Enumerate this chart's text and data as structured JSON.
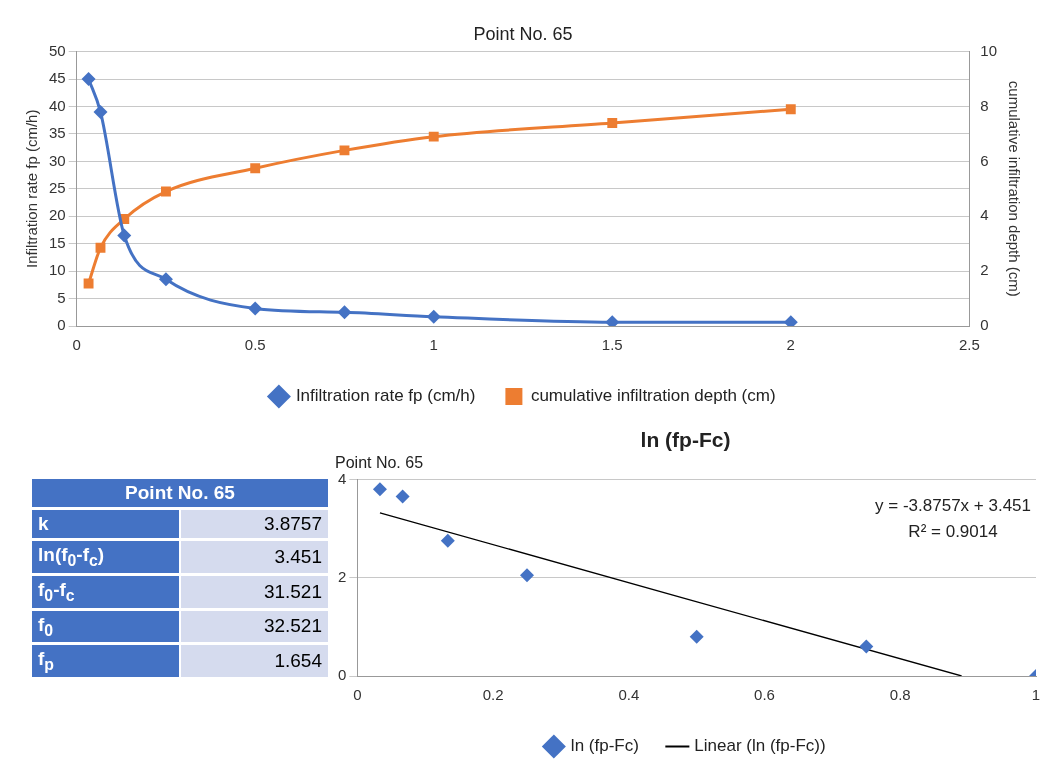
{
  "chart_data": [
    {
      "type": "line",
      "title": "Point No. 65",
      "ylabel": "Infiltration rate fp (cm/h)",
      "y2label": "cumulative infiltration depth (cm)",
      "x": [
        0.0333,
        0.0667,
        0.1333,
        0.25,
        0.5,
        0.75,
        1,
        1.5,
        2
      ],
      "series": [
        {
          "name": "Infiltration rate fp (cm/h)",
          "color": "#4472c4",
          "marker": "diamond",
          "values": [
            45,
            39,
            16.5,
            8.5,
            3.2,
            2.5,
            1.7,
            0.7,
            0.7
          ]
        },
        {
          "name": "cumulative infiltration depth (cm)",
          "color": "#ed7d31",
          "marker": "square",
          "axis": "y2",
          "values": [
            1.55,
            2.85,
            3.9,
            4.9,
            5.75,
            6.4,
            6.9,
            7.4,
            7.9
          ]
        }
      ],
      "xlim": [
        0,
        2.5
      ],
      "xticks": [
        0,
        0.5,
        1,
        1.5,
        2,
        2.5
      ],
      "ylim": [
        0,
        50
      ],
      "yticks": [
        0,
        5,
        10,
        15,
        20,
        25,
        30,
        35,
        40,
        45,
        50
      ],
      "y2lim": [
        0,
        10
      ],
      "y2ticks": [
        0,
        2,
        4,
        6,
        8,
        10
      ],
      "grid": "y",
      "legend": "bottom"
    },
    {
      "type": "other",
      "title": "Point No. 65",
      "categories": [
        "k",
        "ln(f$_{0}$-f$_{c}$)",
        "f$_{0}$-f$_{c}$",
        "f$_{0}$",
        "f$_{p}$"
      ],
      "values": [
        3.8757,
        3.451,
        31.521,
        32.521,
        1.654
      ],
      "data_labels": true
    },
    {
      "type": "scatter",
      "title": "ln (fp-Fc)",
      "subtitle": "Point No. 65",
      "x": [
        0.0333,
        0.0667,
        0.1333,
        0.25,
        0.5,
        0.75,
        1
      ],
      "series": [
        {
          "name": "ln (fp-Fc)",
          "color": "#4472c4",
          "marker": "diamond",
          "values": [
            3.8,
            3.65,
            2.75,
            2.05,
            0.8,
            0.6,
            0
          ]
        },
        {
          "name": "Linear (ln (fp-Fc))",
          "type": "line",
          "color": "#000000",
          "marker": "none",
          "x": [
            0.0333,
            0.8904
          ],
          "values": [
            3.32,
            0
          ]
        }
      ],
      "xlim": [
        0,
        1
      ],
      "xticks": [
        0,
        0.2,
        0.4,
        0.6,
        0.8,
        1
      ],
      "ylim": [
        0,
        4
      ],
      "yticks": [
        0,
        2,
        4
      ],
      "grid": "y",
      "legend": "bottom",
      "annotations": [
        "y = -3.8757x + 3.451",
        "R² = 0.9014"
      ]
    }
  ]
}
